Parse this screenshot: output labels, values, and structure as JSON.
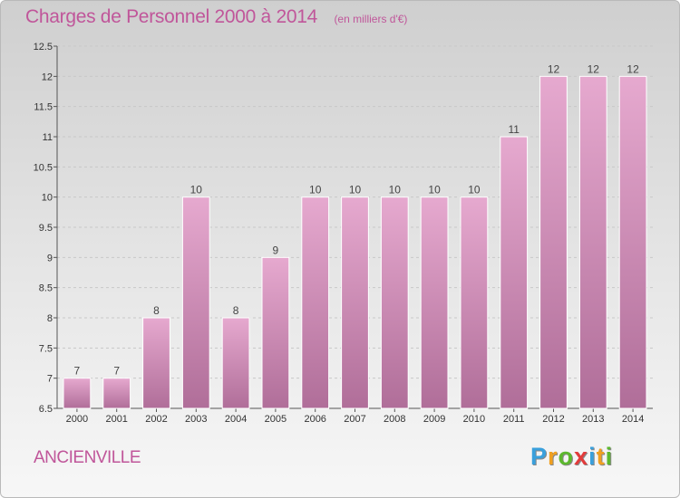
{
  "chart_data": {
    "type": "bar",
    "title": "Charges de Personnel 2000 à 2014",
    "subtitle": "(en milliers d'€)",
    "categories": [
      "2000",
      "2001",
      "2002",
      "2003",
      "2004",
      "2005",
      "2006",
      "2007",
      "2008",
      "2009",
      "2010",
      "2011",
      "2012",
      "2013",
      "2014"
    ],
    "values": [
      7,
      7,
      8,
      10,
      8,
      9,
      10,
      10,
      10,
      10,
      10,
      11,
      12,
      12,
      12
    ],
    "ylim": [
      6.5,
      12.5
    ],
    "yticks": [
      6.5,
      7,
      7.5,
      8,
      8.5,
      9,
      9.5,
      10,
      10.5,
      11,
      11.5,
      12,
      12.5
    ],
    "grid": true,
    "bar_color": "#d68ab9"
  },
  "footer": {
    "town": "ANCIENVILLE",
    "logo_letters": [
      "P",
      "r",
      "o",
      "x",
      "i",
      "t",
      "i"
    ],
    "logo_colors": [
      "#3aa0dc",
      "#f0a020",
      "#5cb82e",
      "#e23b3b",
      "#3aa0dc",
      "#f0a020",
      "#5cb82e"
    ]
  }
}
